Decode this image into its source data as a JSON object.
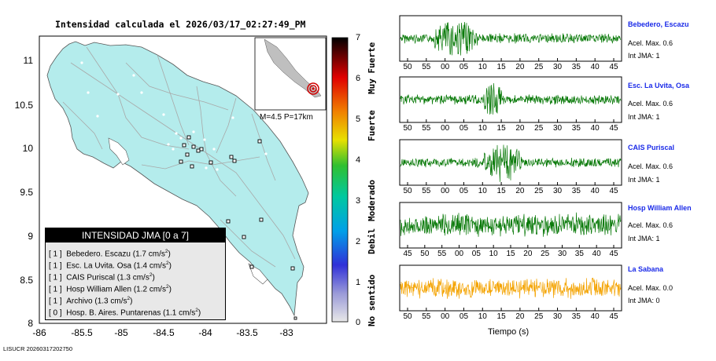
{
  "title": "Intensidad calculada el 2026/03/17_02:27:49_PM",
  "footer_id": "LISUCR 20260317202750",
  "map": {
    "y_ticks": [
      "11",
      "10.5",
      "10",
      "9.5",
      "9",
      "8.5",
      "8"
    ],
    "x_ticks": [
      "-86",
      "-85.5",
      "-85",
      "-84.5",
      "-84",
      "-83.5",
      "-83"
    ],
    "inset_caption": "M=4.5 P=17km"
  },
  "colorbar": {
    "ticks": [
      "7",
      "6",
      "5",
      "4",
      "3",
      "2",
      "1",
      "0"
    ],
    "categories": [
      "Muy Fuerte",
      "Fuerte",
      "Moderado",
      "Debil",
      "No sentido"
    ]
  },
  "legend": {
    "title": "INTENSIDAD JMA [0 a 7]",
    "rows": [
      {
        "level": "[ 1 ]",
        "name": "Bebedero. Escazu",
        "value": "(1.7 cm/s",
        "unit_sup": "2",
        "close": ")"
      },
      {
        "level": "[ 1 ]",
        "name": "Esc. La Uvita. Osa",
        "value": "(1.4 cm/s",
        "unit_sup": "2",
        "close": ")"
      },
      {
        "level": "[ 1 ]",
        "name": "CAIS Puriscal",
        "value": "(1.3 cm/s",
        "unit_sup": "2",
        "close": ")"
      },
      {
        "level": "[ 1 ]",
        "name": "Hosp William Allen",
        "value": "(1.2 cm/s",
        "unit_sup": "2",
        "close": ")"
      },
      {
        "level": "[ 1 ]",
        "name": "Archivo",
        "value": "(1.3 cm/s",
        "unit_sup": "2",
        "close": ")"
      },
      {
        "level": "[ 0 ]",
        "name": "Hosp. B. Aires. Puntarenas",
        "value": "(1.1 cm/s",
        "unit_sup": "2",
        "close": ")"
      }
    ]
  },
  "stations": [
    {
      "name": "Bebedero, Escazu",
      "accel": "Acel. Max. 0.6",
      "jma": "Int JMA: 1",
      "color": "#0a7a0a",
      "ticks": [
        "50",
        "55",
        "00",
        "05",
        "10",
        "15",
        "20",
        "25",
        "30",
        "35",
        "40",
        "45"
      ]
    },
    {
      "name": "Esc. La Uvita, Osa",
      "accel": "Acel. Max. 0.6",
      "jma": "Int JMA: 1",
      "color": "#0a7a0a",
      "ticks": [
        "50",
        "55",
        "00",
        "05",
        "10",
        "15",
        "20",
        "25",
        "30",
        "35",
        "40",
        "45"
      ]
    },
    {
      "name": "CAIS Puriscal",
      "accel": "Acel. Max. 0.6",
      "jma": "Int JMA: 1",
      "color": "#0a7a0a",
      "ticks": [
        "50",
        "55",
        "00",
        "05",
        "10",
        "15",
        "20",
        "25",
        "30",
        "35",
        "40",
        "45"
      ]
    },
    {
      "name": "Hosp William Allen",
      "accel": "Acel. Max. 0.6",
      "jma": "Int JMA: 1",
      "color": "#0a7a0a",
      "ticks": [
        "45",
        "50",
        "55",
        "00",
        "05",
        "10",
        "15",
        "20",
        "25",
        "30",
        "35",
        "40",
        "45"
      ]
    },
    {
      "name": "La Sabana",
      "accel": "Acel. Max. 0.0",
      "jma": "Int JMA: 0",
      "color": "#f4a300",
      "ticks": [
        "50",
        "55",
        "00",
        "05",
        "10",
        "15",
        "20",
        "25",
        "30",
        "35",
        "40",
        "45"
      ]
    }
  ],
  "time_axis_label": "Tiempo (s)",
  "colors": {
    "land": "#b4ecec",
    "sea": "#ffffff",
    "trace_green": "#0a7a0a",
    "trace_orange": "#f4a300",
    "station_link": "#1a2ae8"
  }
}
